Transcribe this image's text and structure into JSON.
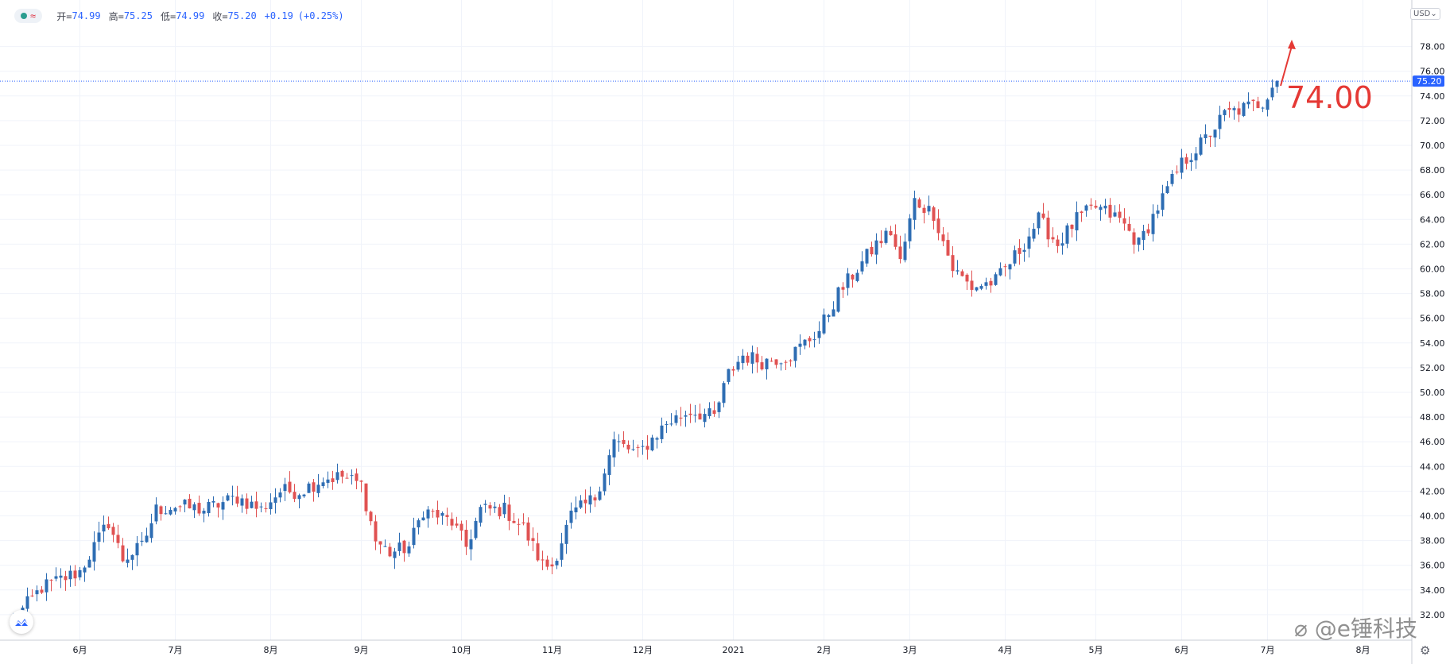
{
  "legend": {
    "open_label": "开=",
    "open": "74.99",
    "high_label": "高=",
    "high": "75.25",
    "low_label": "低=",
    "low": "74.99",
    "close_label": "收=",
    "close": "75.20",
    "change": "+0.19",
    "change_pct": "(+0.25%)"
  },
  "currency": "USD",
  "annotation": "74.00",
  "watermark": "@e锤科技",
  "colors": {
    "up": "#2e6db3",
    "down": "#e05252",
    "arrow": "#e53935",
    "price_line": "#2962ff"
  },
  "icons": {
    "settings": "gear-icon",
    "logo": "chart-logo-icon"
  },
  "chart_data": {
    "type": "candlestick",
    "last_price": "75.20",
    "ylim": [
      30,
      80
    ],
    "y_ticks": [
      "32.00",
      "34.00",
      "36.00",
      "38.00",
      "40.00",
      "42.00",
      "44.00",
      "46.00",
      "48.00",
      "50.00",
      "52.00",
      "54.00",
      "56.00",
      "58.00",
      "60.00",
      "62.00",
      "64.00",
      "66.00",
      "68.00",
      "70.00",
      "72.00",
      "74.00",
      "76.00",
      "78.00"
    ],
    "x_ticks": [
      "6月",
      "7月",
      "8月",
      "9月",
      "10月",
      "11月",
      "12月",
      "2021",
      "2月",
      "3月",
      "4月",
      "5月",
      "6月",
      "7月",
      "8月"
    ],
    "x_tick_index": [
      14,
      34,
      54,
      73,
      94,
      113,
      132,
      151,
      170,
      188,
      208,
      227,
      245,
      263,
      283
    ],
    "bar_count": 266,
    "anchors": [
      [
        0,
        31.5
      ],
      [
        6,
        34.2
      ],
      [
        14,
        35.5
      ],
      [
        20,
        39.5
      ],
      [
        23,
        36.5
      ],
      [
        27,
        37.5
      ],
      [
        30,
        40.5
      ],
      [
        34,
        40.8
      ],
      [
        40,
        40.5
      ],
      [
        47,
        41.5
      ],
      [
        52,
        40.5
      ],
      [
        56,
        42.0
      ],
      [
        60,
        42.0
      ],
      [
        65,
        43.0
      ],
      [
        69,
        43.2
      ],
      [
        73,
        42.5
      ],
      [
        76,
        38.0
      ],
      [
        79,
        37.0
      ],
      [
        83,
        37.5
      ],
      [
        86,
        40.5
      ],
      [
        92,
        39.5
      ],
      [
        95,
        37.5
      ],
      [
        98,
        40.5
      ],
      [
        103,
        40.5
      ],
      [
        107,
        39.0
      ],
      [
        111,
        36.0
      ],
      [
        113,
        36.0
      ],
      [
        117,
        40.0
      ],
      [
        122,
        41.5
      ],
      [
        126,
        46.0
      ],
      [
        131,
        45.0
      ],
      [
        137,
        47.5
      ],
      [
        142,
        48.5
      ],
      [
        147,
        48.0
      ],
      [
        150,
        51.5
      ],
      [
        153,
        53.0
      ],
      [
        157,
        52.5
      ],
      [
        163,
        53.0
      ],
      [
        169,
        55.0
      ],
      [
        173,
        58.0
      ],
      [
        177,
        60.0
      ],
      [
        181,
        62.0
      ],
      [
        184,
        63.0
      ],
      [
        186,
        60.5
      ],
      [
        189,
        65.5
      ],
      [
        193,
        64.5
      ],
      [
        197,
        60.0
      ],
      [
        201,
        58.5
      ],
      [
        206,
        59.0
      ],
      [
        211,
        61.5
      ],
      [
        215,
        64.0
      ],
      [
        219,
        62.0
      ],
      [
        223,
        64.0
      ],
      [
        227,
        65.0
      ],
      [
        232,
        64.0
      ],
      [
        236,
        62.0
      ],
      [
        240,
        65.0
      ],
      [
        245,
        68.5
      ],
      [
        250,
        70.5
      ],
      [
        254,
        72.5
      ],
      [
        258,
        73.0
      ],
      [
        262,
        73.5
      ],
      [
        264,
        75.0
      ],
      [
        265,
        75.2
      ]
    ]
  }
}
